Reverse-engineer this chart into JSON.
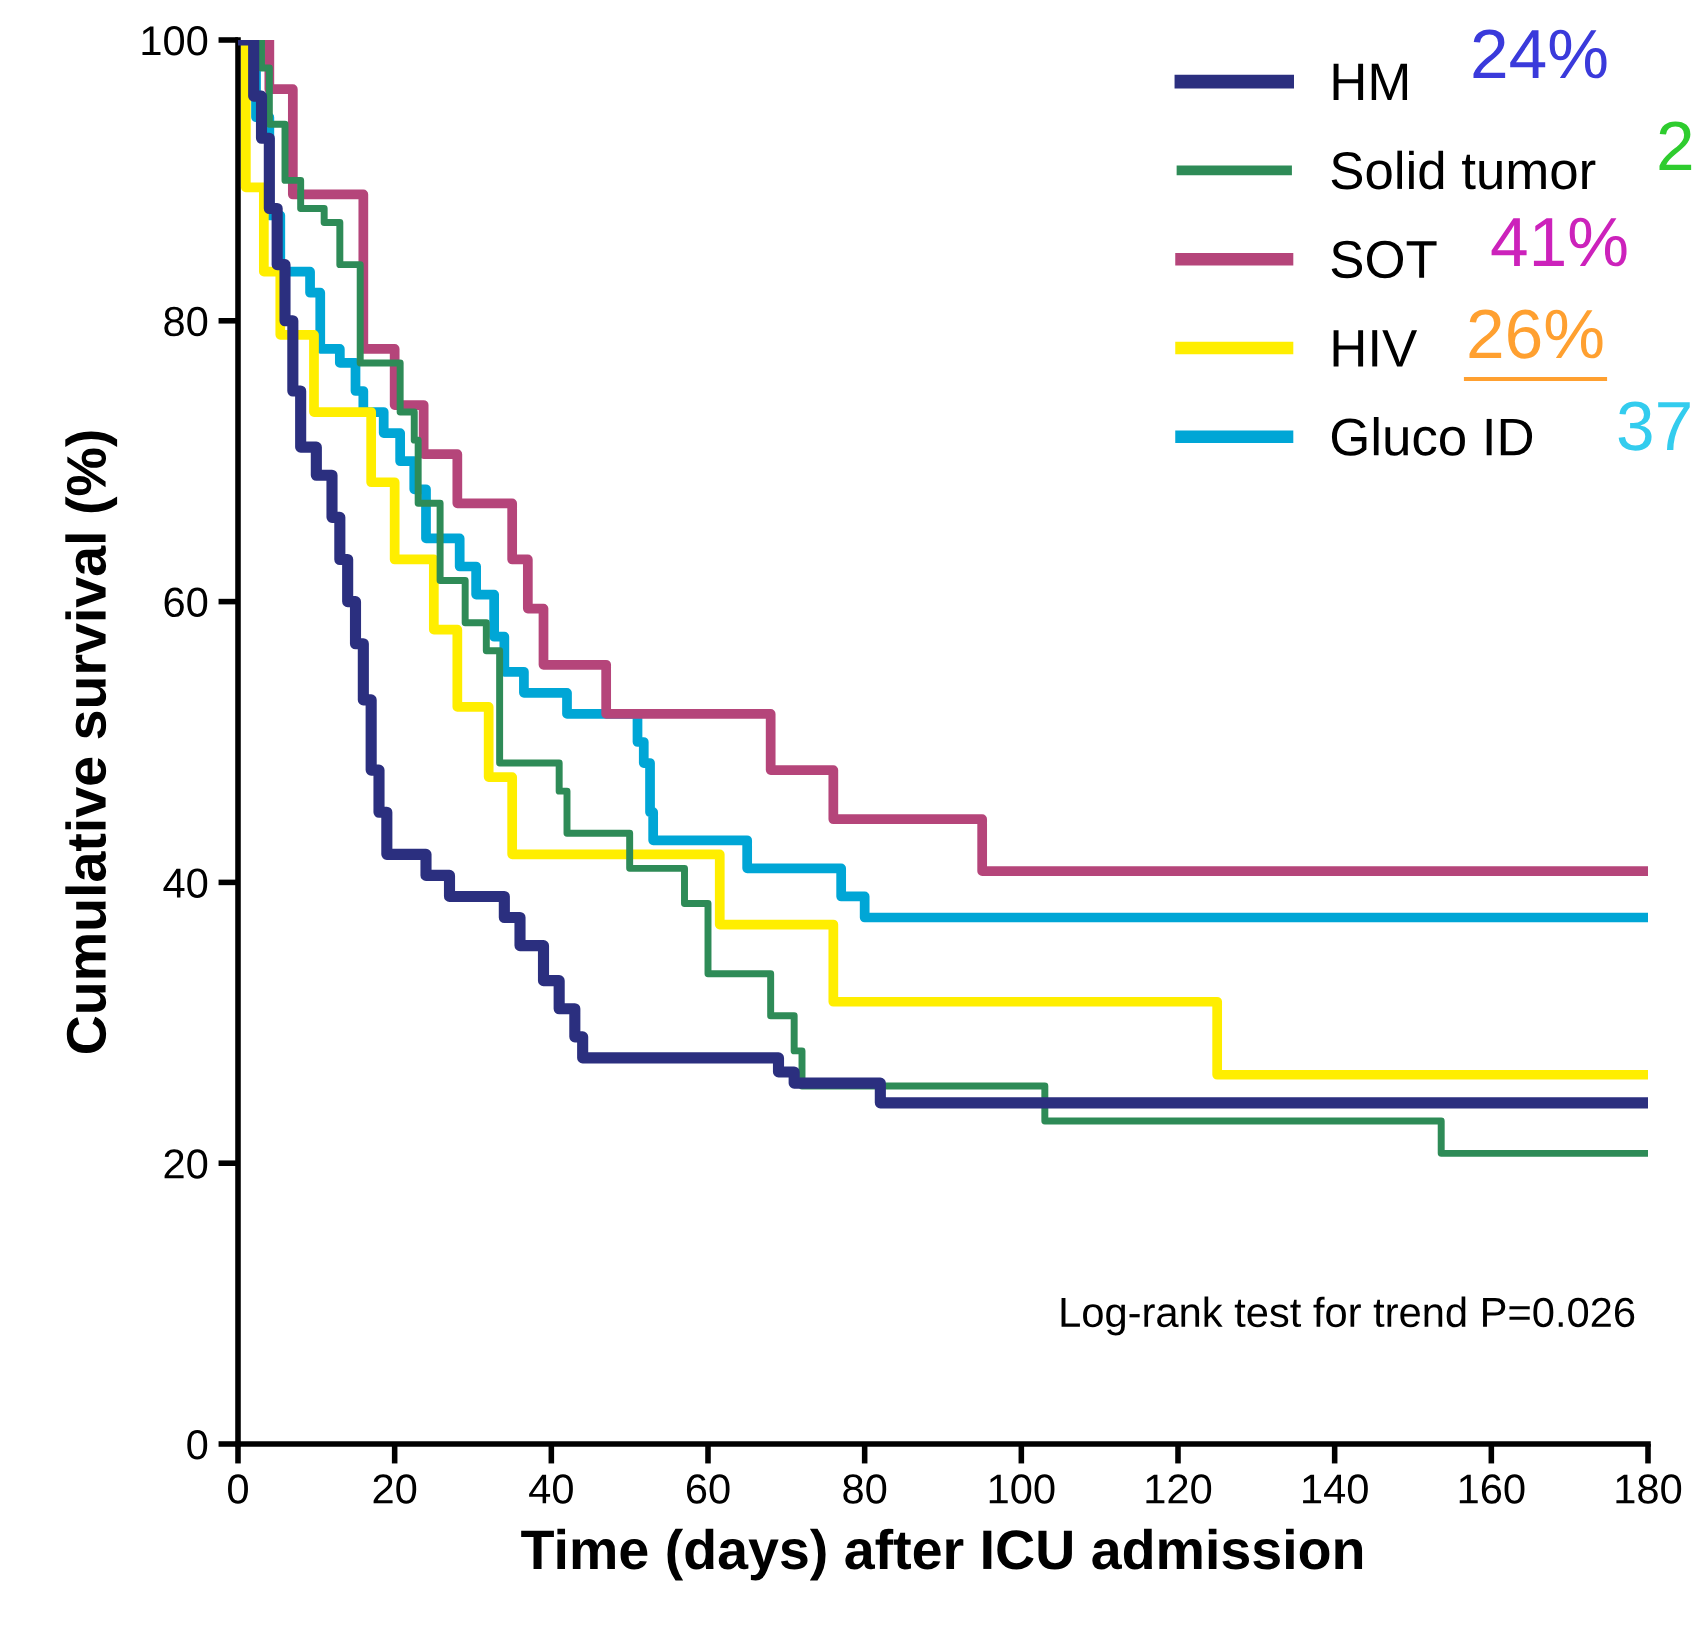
{
  "chart_data": {
    "type": "step",
    "xlabel": "Time (days) after ICU admission",
    "ylabel": "Cumulative survival (%)",
    "xlim": [
      0,
      180
    ],
    "xticks": [
      0,
      20,
      40,
      60,
      80,
      100,
      120,
      140,
      160,
      180
    ],
    "ylim": [
      0,
      100
    ],
    "yticks": [
      0,
      20,
      40,
      60,
      80,
      100
    ],
    "grid": false,
    "legend": "top right",
    "series": [
      {
        "name": "HM",
        "color": "#2b2f7f",
        "x": [
          0,
          2,
          3,
          4,
          5,
          6,
          7,
          8,
          10,
          12,
          13,
          14,
          15,
          16,
          17,
          18,
          19,
          24,
          27,
          34,
          36,
          39,
          41,
          43,
          44,
          69,
          71,
          82,
          180
        ],
        "values": [
          100,
          96,
          93,
          88,
          84,
          80,
          75,
          71,
          69,
          66,
          63,
          60,
          57,
          53,
          48,
          45,
          42,
          40.5,
          39,
          37.5,
          35.5,
          33,
          31,
          29,
          27.5,
          26.5,
          25.7,
          24.3,
          24.3
        ]
      },
      {
        "name": "Solid tumor",
        "color": "#2e8b57",
        "x": [
          0,
          3,
          4,
          6,
          8,
          11,
          13,
          15.6,
          20.7,
          22.5,
          23,
          25.8,
          29,
          31.7,
          33.4,
          41,
          42,
          50,
          57,
          60,
          68,
          71,
          72,
          103,
          153.6,
          180
        ],
        "values": [
          100,
          98,
          94,
          90,
          88,
          87,
          84,
          77,
          73.5,
          71.5,
          67,
          61.5,
          58.5,
          56.5,
          48.5,
          46.5,
          43.5,
          41,
          38.5,
          33.5,
          30.5,
          28,
          25.5,
          23,
          20.7,
          20.7
        ]
      },
      {
        "name": "SOT",
        "color": "#b5457a",
        "x": [
          0,
          4,
          7,
          16,
          20,
          23.7,
          28,
          35,
          37,
          39,
          47,
          68,
          76,
          95,
          180
        ],
        "values": [
          100,
          96.5,
          89,
          78,
          74,
          70.5,
          67,
          63,
          59.5,
          55.5,
          52,
          48,
          44.5,
          40.8,
          40.8
        ]
      },
      {
        "name": "HIV",
        "color": "#ffee00",
        "x": [
          0,
          1,
          3.3,
          5.4,
          9.7,
          17,
          20,
          25,
          28,
          32,
          35,
          61.5,
          76,
          125,
          180
        ],
        "values": [
          100,
          89.5,
          83.5,
          79,
          73.5,
          68.5,
          63,
          58,
          52.5,
          47.5,
          42,
          37,
          31.5,
          26.3,
          26.3
        ]
      },
      {
        "name": "Gluco ID",
        "color": "#00a6d6",
        "x": [
          0,
          1.5,
          2.3,
          4,
          5.4,
          9.2,
          10.5,
          13,
          15,
          16,
          18.6,
          20.7,
          22.5,
          24,
          28.3,
          30.4,
          32.7,
          34,
          36.5,
          42,
          51,
          51.8,
          52.6,
          53,
          65,
          77,
          80,
          180
        ],
        "values": [
          100,
          98.5,
          94.5,
          87.5,
          83.5,
          82,
          78,
          77,
          75,
          73.5,
          72,
          70,
          68,
          64.5,
          62.5,
          60.5,
          57.5,
          55,
          53.5,
          52,
          50,
          48.5,
          45,
          43,
          41,
          39,
          37.5,
          37.5
        ]
      }
    ],
    "annotations": [
      "24%",
      "2",
      "41%",
      "26%",
      "37",
      "Log-rank test for trend P=0.026"
    ]
  }
}
